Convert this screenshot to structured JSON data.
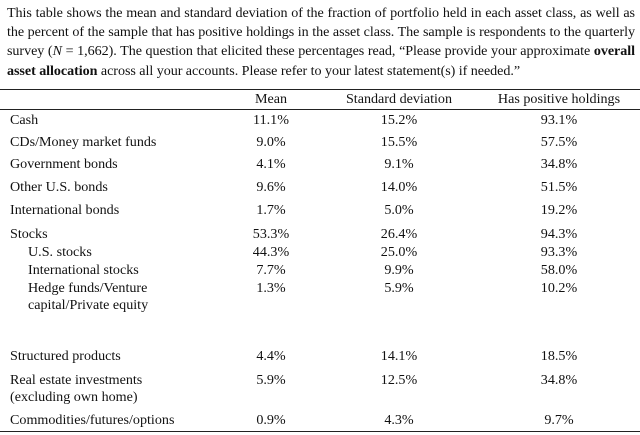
{
  "caption": {
    "part1": "This table shows the mean and standard deviation of the fraction of portfolio held in each asset class, as well as the percent of the sample that has positive holdings in the asset class. The sample is respondents to the quarterly survey (",
    "n_var": "N",
    "part2": " = 1,662). The question that elicited these percentages read, “Please provide your approximate ",
    "bold": "overall asset allocation",
    "part3": " across all your accounts. Please refer to your latest statement(s) if needed.”"
  },
  "table": {
    "headers": [
      "Mean",
      "Standard deviation",
      "Has positive holdings"
    ],
    "rows": [
      {
        "label": "Cash",
        "mean": "11.1%",
        "sd": "15.2%",
        "pos": "93.1%"
      },
      {
        "label": "CDs/Money market funds",
        "mean": "9.0%",
        "sd": "15.5%",
        "pos": "57.5%"
      },
      {
        "label": "Government bonds",
        "mean": "4.1%",
        "sd": "9.1%",
        "pos": "34.8%"
      },
      {
        "label": "Other U.S. bonds",
        "mean": "9.6%",
        "sd": "14.0%",
        "pos": "51.5%"
      },
      {
        "label": "International bonds",
        "mean": "1.7%",
        "sd": "5.0%",
        "pos": "19.2%"
      },
      {
        "label": "Stocks",
        "mean": "53.3%",
        "sd": "26.4%",
        "pos": "94.3%"
      },
      {
        "label": "U.S. stocks",
        "mean": "44.3%",
        "sd": "25.0%",
        "pos": "93.3%"
      },
      {
        "label": "International stocks",
        "mean": "7.7%",
        "sd": "9.9%",
        "pos": "58.0%"
      },
      {
        "label": "Hedge funds/Venture capital/Private equity",
        "mean": "1.3%",
        "sd": "5.9%",
        "pos": "10.2%"
      },
      {
        "label": "Structured products",
        "mean": "4.4%",
        "sd": "14.1%",
        "pos": "18.5%"
      },
      {
        "label": "Real estate investments (excluding own home)",
        "mean": "5.9%",
        "sd": "12.5%",
        "pos": "34.8%"
      },
      {
        "label": "Commodities/futures/options",
        "mean": "0.9%",
        "sd": "4.3%",
        "pos": "9.7%"
      }
    ]
  }
}
